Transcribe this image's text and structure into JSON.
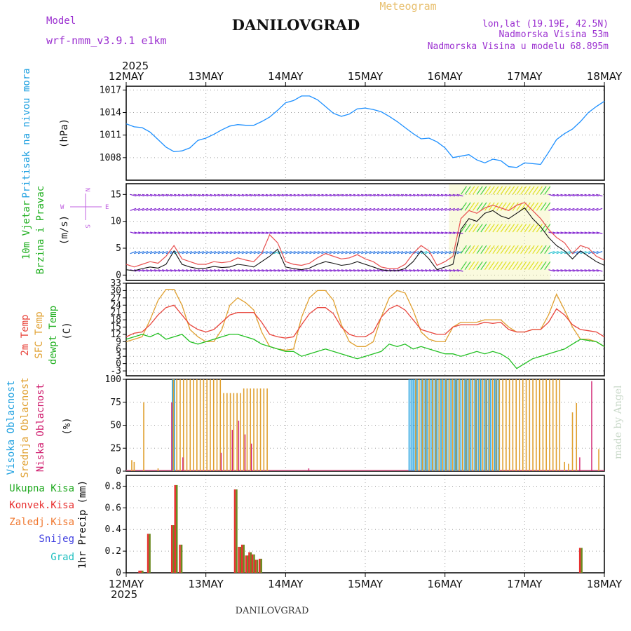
{
  "header": {
    "model_label": "Model",
    "model_name": "wrf-nmm_v3.9.1 e1km",
    "meteogram_label": "Meteogram",
    "station": "DANILOVGRAD",
    "lonlat": "lon,lat (19.19E, 42.5N)",
    "elevation": "Nadmorska Visina 53m",
    "model_elevation": "Nadmorska Visina u modelu 68.895m",
    "year": "2025",
    "footer_station": "DANILOVGRAD",
    "credit": "made by Angel"
  },
  "colors": {
    "purple": "#9b30d0",
    "blue": "#1e90ff",
    "pressure": "#1e90ff",
    "temp2m": "#e8453c",
    "sfc": "#e0a030",
    "dewpt": "#22c022",
    "high": "#1ea0e0",
    "mid": "#e0a030",
    "low": "#d02070",
    "total": "#22aa22",
    "conv": "#e83030",
    "frozen": "#f07830",
    "snow": "#4040e0",
    "hail": "#20c0c0",
    "wind_purple": "#8020d0",
    "wind_blue": "#2070e0",
    "wind_cyan": "#20c0d0",
    "wind_green": "#40d040",
    "wind_yellow": "#e0e020",
    "wind_orange": "#f08020",
    "wind_red": "#f02020"
  },
  "x_axis": {
    "dates": [
      "12MAY",
      "13MAY",
      "14MAY",
      "15MAY",
      "16MAY",
      "17MAY",
      "18MAY"
    ],
    "year": "2025"
  },
  "chart_data": [
    {
      "type": "line",
      "panel": "pressure",
      "ylabel_left": "Pritisak na nivou mora",
      "unit": "(hPa)",
      "yticks": [
        1008,
        1011,
        1014,
        1017
      ],
      "ylim": [
        1005,
        1017.5
      ],
      "x_days": [
        0,
        0.1,
        0.2,
        0.3,
        0.4,
        0.5,
        0.6,
        0.7,
        0.8,
        0.9,
        1.0,
        1.1,
        1.2,
        1.3,
        1.4,
        1.5,
        1.6,
        1.7,
        1.8,
        1.9,
        2.0,
        2.1,
        2.2,
        2.3,
        2.4,
        2.5,
        2.6,
        2.7,
        2.8,
        2.9,
        3.0,
        3.1,
        3.2,
        3.3,
        3.4,
        3.5,
        3.6,
        3.7,
        3.8,
        3.9,
        4.0,
        4.1,
        4.2,
        4.3,
        4.4,
        4.5,
        4.6,
        4.7,
        4.8,
        4.9,
        5.0,
        5.1,
        5.2,
        5.3,
        5.4,
        5.5,
        5.6,
        5.7,
        5.8,
        5.9,
        6.0
      ],
      "values": [
        1012.5,
        1012.1,
        1012.0,
        1011.4,
        1010.4,
        1009.4,
        1008.8,
        1008.9,
        1009.3,
        1010.3,
        1010.6,
        1011.1,
        1011.7,
        1012.2,
        1012.4,
        1012.3,
        1012.3,
        1012.8,
        1013.4,
        1014.3,
        1015.3,
        1015.6,
        1016.2,
        1016.2,
        1015.7,
        1014.8,
        1013.9,
        1013.5,
        1013.8,
        1014.5,
        1014.6,
        1014.4,
        1014.1,
        1013.5,
        1012.8,
        1012.0,
        1011.2,
        1010.5,
        1010.6,
        1010.1,
        1009.3,
        1008.0,
        1008.2,
        1008.4,
        1007.7,
        1007.3,
        1007.8,
        1007.6,
        1006.8,
        1006.7,
        1007.3,
        1007.2,
        1007.1,
        1008.7,
        1010.4,
        1011.2,
        1011.8,
        1012.8,
        1014.0,
        1014.8,
        1015.5
      ]
    },
    {
      "type": "line",
      "panel": "wind",
      "ylabel_left1": "10m Vjetar",
      "ylabel_left2": "Brzina i Pravac",
      "unit": "(m/s)",
      "compass_n": "N",
      "compass_s": "S",
      "compass_w": "W",
      "compass_e": "E",
      "yticks": [
        0,
        5,
        10,
        15
      ],
      "ylim": [
        -1,
        17
      ],
      "x_days": [
        0,
        0.1,
        0.2,
        0.3,
        0.4,
        0.5,
        0.6,
        0.7,
        0.8,
        0.9,
        1.0,
        1.1,
        1.2,
        1.3,
        1.4,
        1.5,
        1.6,
        1.7,
        1.8,
        1.9,
        2.0,
        2.1,
        2.2,
        2.3,
        2.4,
        2.5,
        2.6,
        2.7,
        2.8,
        2.9,
        3.0,
        3.1,
        3.2,
        3.3,
        3.4,
        3.5,
        3.6,
        3.7,
        3.8,
        3.9,
        4.0,
        4.1,
        4.2,
        4.3,
        4.4,
        4.5,
        4.6,
        4.7,
        4.8,
        4.9,
        5.0,
        5.1,
        5.2,
        5.3,
        5.4,
        5.5,
        5.6,
        5.7,
        5.8,
        5.9,
        6.0
      ],
      "speed": [
        1.0,
        0.8,
        1.2,
        1.5,
        1.3,
        2.0,
        4.5,
        2.0,
        1.5,
        1.2,
        1.3,
        1.6,
        1.4,
        1.5,
        2.0,
        1.8,
        1.5,
        2.5,
        3.5,
        4.8,
        1.5,
        1.2,
        1.0,
        1.3,
        2.0,
        2.5,
        2.2,
        1.8,
        2.0,
        2.5,
        2.0,
        1.5,
        1.0,
        0.8,
        0.8,
        1.2,
        2.5,
        4.5,
        3.0,
        1.0,
        1.5,
        2.0,
        8.5,
        10.5,
        10.0,
        11.5,
        12.0,
        11.0,
        10.5,
        11.5,
        12.5,
        10.5,
        9.0,
        7.0,
        5.5,
        4.5,
        3.0,
        4.5,
        3.5,
        2.5,
        1.8
      ],
      "gust": [
        2.0,
        1.5,
        2.0,
        2.5,
        2.2,
        3.5,
        5.5,
        3.0,
        2.5,
        2.0,
        2.0,
        2.5,
        2.3,
        2.5,
        3.2,
        2.8,
        2.5,
        4.0,
        7.5,
        6.0,
        2.5,
        2.0,
        1.8,
        2.2,
        3.2,
        4.0,
        3.5,
        3.0,
        3.2,
        3.8,
        3.0,
        2.5,
        1.5,
        1.2,
        1.2,
        2.0,
        4.0,
        5.5,
        4.5,
        1.8,
        2.5,
        3.5,
        10.5,
        12.0,
        11.5,
        12.5,
        13.0,
        12.5,
        12.0,
        13.0,
        13.5,
        12.0,
        10.5,
        8.5,
        7.0,
        6.0,
        4.0,
        5.5,
        5.0,
        3.5,
        2.8
      ]
    },
    {
      "type": "line",
      "panel": "temperature",
      "ylabel_1": "2m Temp",
      "ylabel_2": "SFC Temp",
      "ylabel_3": "dewpt Temp",
      "unit": "(C)",
      "yticks": [
        -3,
        0,
        3,
        6,
        9,
        12,
        15,
        18,
        21,
        24,
        27,
        30,
        33
      ],
      "ylim": [
        -5,
        33
      ],
      "x_days": [
        0,
        0.1,
        0.2,
        0.3,
        0.4,
        0.5,
        0.6,
        0.7,
        0.8,
        0.9,
        1.0,
        1.1,
        1.2,
        1.3,
        1.4,
        1.5,
        1.6,
        1.7,
        1.8,
        1.9,
        2.0,
        2.1,
        2.2,
        2.3,
        2.4,
        2.5,
        2.6,
        2.7,
        2.8,
        2.9,
        3.0,
        3.1,
        3.2,
        3.3,
        3.4,
        3.5,
        3.6,
        3.7,
        3.8,
        3.9,
        4.0,
        4.1,
        4.2,
        4.3,
        4.4,
        4.5,
        4.6,
        4.7,
        4.8,
        4.9,
        5.0,
        5.1,
        5.2,
        5.3,
        5.4,
        5.5,
        5.6,
        5.7,
        5.8,
        5.9,
        6.0
      ],
      "t2m": [
        11,
        12.5,
        13,
        16,
        20,
        23,
        24,
        20,
        16,
        14,
        13,
        14,
        17,
        20,
        21,
        21,
        21,
        17,
        12,
        11,
        10.5,
        11,
        16,
        20.5,
        23,
        23,
        20.5,
        15,
        12,
        11,
        11,
        13,
        19,
        22.5,
        24,
        22,
        18,
        14,
        13,
        12,
        12,
        15,
        16,
        16,
        16,
        17,
        16.5,
        17,
        14,
        13,
        13,
        14,
        14,
        17,
        22.5,
        20,
        16,
        14,
        13.5,
        13,
        11
      ],
      "tsfc": [
        9,
        10,
        11,
        18,
        26,
        30.5,
        30.5,
        24,
        14,
        11,
        9,
        9,
        14,
        24,
        27,
        25,
        22,
        13,
        7,
        6,
        5.5,
        6,
        19,
        27,
        30,
        30,
        26,
        16,
        9,
        7,
        7,
        9,
        19,
        27,
        30,
        29,
        22,
        13,
        10,
        9,
        9,
        15,
        17,
        17,
        17,
        18,
        18,
        18,
        15,
        13,
        13,
        14,
        14,
        20,
        28.5,
        22,
        15,
        10,
        10,
        9,
        7
      ],
      "dewpt": [
        10,
        11,
        12,
        11,
        12.5,
        10,
        11,
        12,
        9,
        8,
        9,
        10,
        11,
        12,
        12,
        11,
        10,
        8,
        7,
        6,
        5,
        5,
        3,
        4,
        5,
        6,
        5,
        4,
        3,
        2,
        3,
        4,
        5,
        8,
        7,
        8,
        6,
        7,
        6,
        5,
        4,
        4,
        3,
        4,
        5,
        4,
        5,
        4,
        2,
        -2,
        0,
        2,
        3,
        4,
        5,
        6,
        8,
        10,
        9.5,
        9,
        7
      ]
    },
    {
      "type": "bar",
      "panel": "clouds",
      "ylabel_1": "Visoka Oblacnost",
      "ylabel_2": "Srednja Oblacnost",
      "ylabel_3": "Niska Oblacnost",
      "unit": "(%)",
      "yticks": [
        0,
        25,
        50,
        75,
        100
      ],
      "ylim": [
        0,
        100
      ],
      "high_intervals": [
        [
          0.58,
          0.62
        ],
        [
          3.55,
          4.7
        ]
      ],
      "mid_intervals": [
        [
          0.58,
          1.78
        ],
        [
          3.62,
          5.45
        ]
      ],
      "low_peaks": [
        {
          "x": 0.58,
          "v": 75
        },
        {
          "x": 0.72,
          "v": 15
        },
        {
          "x": 1.2,
          "v": 20
        },
        {
          "x": 1.34,
          "v": 45
        },
        {
          "x": 1.42,
          "v": 55
        },
        {
          "x": 1.5,
          "v": 40
        },
        {
          "x": 1.58,
          "v": 30
        },
        {
          "x": 2.3,
          "v": 3
        },
        {
          "x": 5.7,
          "v": 15
        },
        {
          "x": 5.85,
          "v": 98
        }
      ],
      "scattered_mid": [
        {
          "x": 0.07,
          "v": 12
        },
        {
          "x": 0.1,
          "v": 10
        },
        {
          "x": 0.22,
          "v": 75
        },
        {
          "x": 0.4,
          "v": 3
        },
        {
          "x": 5.5,
          "v": 10
        },
        {
          "x": 5.55,
          "v": 8
        },
        {
          "x": 5.6,
          "v": 64
        },
        {
          "x": 5.65,
          "v": 74
        },
        {
          "x": 5.93,
          "v": 24
        }
      ]
    },
    {
      "type": "bar",
      "panel": "precip",
      "legend": [
        "Ukupna Kisa",
        "Konvek.Kisa",
        "Zaledj.Kisa",
        "Snijeg",
        "Grad"
      ],
      "unit": "1hr Precip (mm)",
      "yticks": [
        0,
        0.2,
        0.4,
        0.6,
        0.8
      ],
      "ylim": [
        0,
        0.9
      ],
      "x_days": [
        0.17,
        0.19,
        0.28,
        0.58,
        0.62,
        0.68,
        1.37,
        1.42,
        1.46,
        1.51,
        1.55,
        1.59,
        1.63,
        1.68,
        5.7
      ],
      "values": [
        0.02,
        0.02,
        0.36,
        0.44,
        0.81,
        0.26,
        0.77,
        0.24,
        0.26,
        0.16,
        0.19,
        0.17,
        0.12,
        0.13,
        0.23
      ]
    }
  ]
}
